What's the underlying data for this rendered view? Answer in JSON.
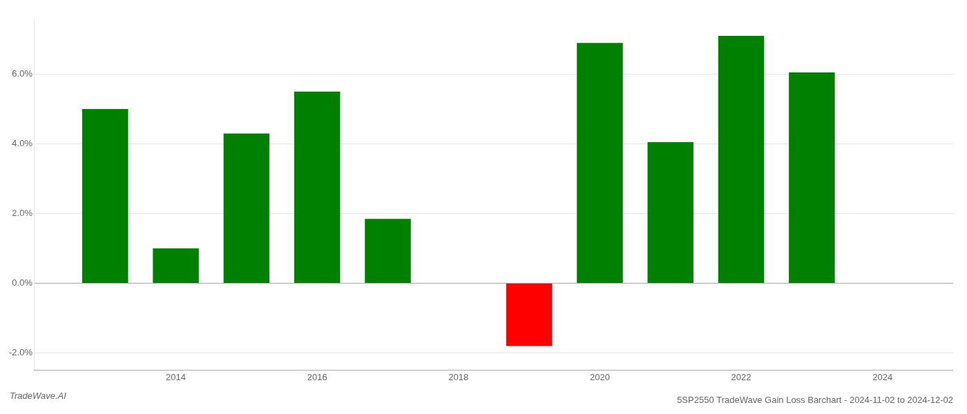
{
  "chart_data": {
    "type": "bar",
    "title": "5SP2550 TradeWave Gain Loss Barchart - 2024-11-02 to 2024-12-02",
    "annotations": [
      "TradeWave.AI"
    ],
    "x": [
      2013,
      2014,
      2015,
      2016,
      2017,
      2019,
      2020,
      2021,
      2022,
      2023
    ],
    "values": [
      0.05,
      0.01,
      0.043,
      0.055,
      0.0185,
      -0.018,
      0.069,
      0.0405,
      0.071,
      0.0605
    ],
    "colors": [
      "#008000",
      "#008000",
      "#008000",
      "#008000",
      "#008000",
      "#ff0000",
      "#008000",
      "#008000",
      "#008000",
      "#008000"
    ],
    "xlim": [
      2012,
      2025
    ],
    "xticks": [
      2014,
      2016,
      2018,
      2020,
      2022,
      2024
    ],
    "ylim": [
      -0.025,
      0.076
    ],
    "yticks": [
      {
        "value": -0.02,
        "label": "-2.0%"
      },
      {
        "value": 0,
        "label": "0.0%"
      },
      {
        "value": 0.02,
        "label": "2.0%"
      },
      {
        "value": 0.04,
        "label": "4.0%"
      },
      {
        "value": 0.06,
        "label": "6.0%"
      }
    ],
    "grid": true
  }
}
